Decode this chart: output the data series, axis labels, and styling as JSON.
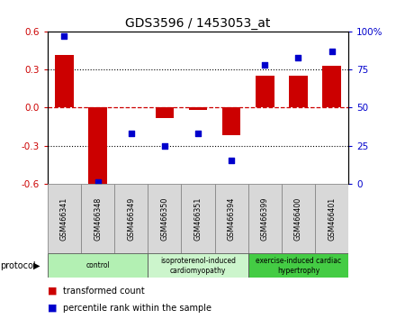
{
  "title": "GDS3596 / 1453053_at",
  "samples": [
    "GSM466341",
    "GSM466348",
    "GSM466349",
    "GSM466350",
    "GSM466351",
    "GSM466394",
    "GSM466399",
    "GSM466400",
    "GSM466401"
  ],
  "transformed_count": [
    0.42,
    -0.62,
    0.0,
    -0.08,
    -0.02,
    -0.22,
    0.25,
    0.25,
    0.33
  ],
  "percentile_rank": [
    97,
    1,
    33,
    25,
    33,
    15,
    78,
    83,
    87
  ],
  "bar_color": "#cc0000",
  "dot_color": "#0000cc",
  "ylim_left": [
    -0.6,
    0.6
  ],
  "ylim_right": [
    0,
    100
  ],
  "yticks_left": [
    -0.6,
    -0.3,
    0.0,
    0.3,
    0.6
  ],
  "yticks_right": [
    0,
    25,
    50,
    75,
    100
  ],
  "ytick_labels_right": [
    "0",
    "25",
    "50",
    "75",
    "100%"
  ],
  "group_ranges": [
    {
      "start": 0,
      "end": 2,
      "label": "control",
      "color": "#b3f0b3"
    },
    {
      "start": 3,
      "end": 5,
      "label": "isoproterenol-induced\ncardiomyopathy",
      "color": "#ccf5cc"
    },
    {
      "start": 6,
      "end": 8,
      "label": "exercise-induced cardiac\nhypertrophy",
      "color": "#44cc44"
    }
  ],
  "protocol_label": "protocol",
  "legend_red_label": "transformed count",
  "legend_blue_label": "percentile rank within the sample",
  "zero_line_color": "#cc0000",
  "dotted_line_color": "#000000",
  "sample_box_color": "#d8d8d8",
  "sample_box_edge": "#888888"
}
